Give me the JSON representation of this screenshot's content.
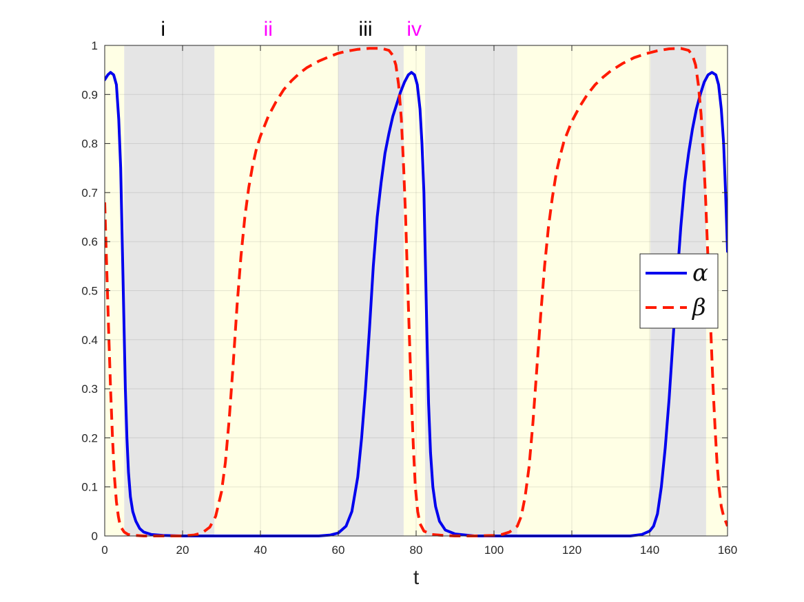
{
  "chart_data": {
    "type": "line",
    "title": "",
    "xlabel": "t",
    "ylabel": "",
    "xlim": [
      0,
      160
    ],
    "ylim": [
      0,
      1
    ],
    "x_ticks": [
      0,
      20,
      40,
      60,
      80,
      100,
      120,
      140,
      160
    ],
    "y_ticks": [
      0,
      0.1,
      0.2,
      0.3,
      0.4,
      0.5,
      0.6,
      0.7,
      0.8,
      0.9,
      1
    ],
    "x_tick_labels": [
      "0",
      "20",
      "40",
      "60",
      "80",
      "100",
      "120",
      "140",
      "160"
    ],
    "y_tick_labels": [
      "0",
      "0.1",
      "0.2",
      "0.3",
      "0.4",
      "0.5",
      "0.6",
      "0.7",
      "0.8",
      "0.9",
      "1"
    ],
    "grid": true,
    "legend_position": "right",
    "phase_labels": [
      {
        "text": "i",
        "x": 15,
        "color": "#000000"
      },
      {
        "text": "ii",
        "x": 42,
        "color": "#ff00ff"
      },
      {
        "text": "iii",
        "x": 67,
        "color": "#000000"
      },
      {
        "text": "iv",
        "x": 79.5,
        "color": "#ff00ff"
      }
    ],
    "shaded_regions": [
      {
        "x0": 0,
        "x1": 5,
        "color": "#ffffe5"
      },
      {
        "x0": 5,
        "x1": 28.2,
        "color": "#e5e5e5"
      },
      {
        "x0": 28.2,
        "x1": 60,
        "color": "#ffffe5"
      },
      {
        "x0": 60,
        "x1": 76.8,
        "color": "#e5e5e5"
      },
      {
        "x0": 76.8,
        "x1": 82.3,
        "color": "#ffffe5"
      },
      {
        "x0": 82.3,
        "x1": 106,
        "color": "#e5e5e5"
      },
      {
        "x0": 106,
        "x1": 140.2,
        "color": "#ffffe5"
      },
      {
        "x0": 140.2,
        "x1": 154.5,
        "color": "#e5e5e5"
      },
      {
        "x0": 154.5,
        "x1": 160,
        "color": "#ffffe5"
      }
    ],
    "series": [
      {
        "name": "α",
        "color": "#0000ee",
        "style": "solid",
        "points": [
          [
            0,
            0.93
          ],
          [
            0.8,
            0.94
          ],
          [
            1.5,
            0.945
          ],
          [
            2.3,
            0.94
          ],
          [
            3,
            0.92
          ],
          [
            3.6,
            0.85
          ],
          [
            4.1,
            0.75
          ],
          [
            4.5,
            0.6
          ],
          [
            4.9,
            0.45
          ],
          [
            5.3,
            0.3
          ],
          [
            5.7,
            0.2
          ],
          [
            6.1,
            0.13
          ],
          [
            6.6,
            0.08
          ],
          [
            7.2,
            0.05
          ],
          [
            8,
            0.03
          ],
          [
            9,
            0.015
          ],
          [
            10,
            0.008
          ],
          [
            12,
            0.003
          ],
          [
            15,
            0.001
          ],
          [
            20,
            0.0
          ],
          [
            40,
            0.0
          ],
          [
            55,
            0.0
          ],
          [
            58,
            0.002
          ],
          [
            60,
            0.006
          ],
          [
            62,
            0.02
          ],
          [
            63.5,
            0.05
          ],
          [
            65,
            0.12
          ],
          [
            66,
            0.2
          ],
          [
            67,
            0.3
          ],
          [
            68,
            0.42
          ],
          [
            69,
            0.55
          ],
          [
            70,
            0.65
          ],
          [
            71,
            0.72
          ],
          [
            72,
            0.78
          ],
          [
            73,
            0.82
          ],
          [
            74,
            0.855
          ],
          [
            75,
            0.88
          ],
          [
            76,
            0.905
          ],
          [
            77,
            0.925
          ],
          [
            78,
            0.94
          ],
          [
            78.8,
            0.945
          ],
          [
            79.6,
            0.94
          ],
          [
            80.3,
            0.92
          ],
          [
            81,
            0.87
          ],
          [
            81.5,
            0.8
          ],
          [
            82,
            0.7
          ],
          [
            82.4,
            0.55
          ],
          [
            82.8,
            0.4
          ],
          [
            83.2,
            0.27
          ],
          [
            83.7,
            0.17
          ],
          [
            84.3,
            0.1
          ],
          [
            85,
            0.06
          ],
          [
            86,
            0.03
          ],
          [
            87.5,
            0.012
          ],
          [
            90,
            0.004
          ],
          [
            95,
            0.0
          ],
          [
            120,
            0.0
          ],
          [
            135,
            0.0
          ],
          [
            138,
            0.003
          ],
          [
            140,
            0.01
          ],
          [
            141,
            0.02
          ],
          [
            142,
            0.045
          ],
          [
            143,
            0.1
          ],
          [
            144,
            0.18
          ],
          [
            145,
            0.28
          ],
          [
            146,
            0.4
          ],
          [
            147,
            0.52
          ],
          [
            148,
            0.63
          ],
          [
            149,
            0.72
          ],
          [
            150,
            0.78
          ],
          [
            151,
            0.83
          ],
          [
            152,
            0.87
          ],
          [
            153,
            0.9
          ],
          [
            154,
            0.925
          ],
          [
            155,
            0.94
          ],
          [
            156,
            0.945
          ],
          [
            157,
            0.94
          ],
          [
            157.7,
            0.92
          ],
          [
            158.4,
            0.87
          ],
          [
            159,
            0.8
          ],
          [
            159.5,
            0.7
          ],
          [
            160,
            0.58
          ]
        ]
      },
      {
        "name": "β",
        "color": "#ff1a00",
        "style": "dashed",
        "points": [
          [
            0,
            0.68
          ],
          [
            0.5,
            0.55
          ],
          [
            1,
            0.42
          ],
          [
            1.5,
            0.3
          ],
          [
            2,
            0.2
          ],
          [
            2.5,
            0.12
          ],
          [
            3,
            0.07
          ],
          [
            3.5,
            0.04
          ],
          [
            4,
            0.02
          ],
          [
            5,
            0.008
          ],
          [
            6,
            0.003
          ],
          [
            8,
            0.001
          ],
          [
            10,
            0.0
          ],
          [
            15,
            0.0
          ],
          [
            20,
            0.0
          ],
          [
            23,
            0.002
          ],
          [
            25,
            0.006
          ],
          [
            27,
            0.018
          ],
          [
            28.5,
            0.04
          ],
          [
            30,
            0.09
          ],
          [
            31,
            0.15
          ],
          [
            32,
            0.24
          ],
          [
            33,
            0.35
          ],
          [
            34,
            0.47
          ],
          [
            35,
            0.57
          ],
          [
            36,
            0.65
          ],
          [
            37,
            0.71
          ],
          [
            38,
            0.755
          ],
          [
            39,
            0.79
          ],
          [
            40,
            0.815
          ],
          [
            42,
            0.855
          ],
          [
            44,
            0.885
          ],
          [
            46,
            0.91
          ],
          [
            48,
            0.928
          ],
          [
            50,
            0.943
          ],
          [
            52,
            0.955
          ],
          [
            55,
            0.968
          ],
          [
            58,
            0.978
          ],
          [
            60,
            0.984
          ],
          [
            62,
            0.988
          ],
          [
            65,
            0.992
          ],
          [
            68,
            0.994
          ],
          [
            71,
            0.994
          ],
          [
            73,
            0.99
          ],
          [
            74,
            0.98
          ],
          [
            74.8,
            0.96
          ],
          [
            75.5,
            0.92
          ],
          [
            76.2,
            0.85
          ],
          [
            76.8,
            0.75
          ],
          [
            77.3,
            0.65
          ],
          [
            77.8,
            0.52
          ],
          [
            78.3,
            0.4
          ],
          [
            78.8,
            0.28
          ],
          [
            79.3,
            0.18
          ],
          [
            79.8,
            0.1
          ],
          [
            80.4,
            0.05
          ],
          [
            81,
            0.025
          ],
          [
            82,
            0.01
          ],
          [
            84,
            0.003
          ],
          [
            87,
            0.001
          ],
          [
            90,
            0.0
          ],
          [
            95,
            0.0
          ],
          [
            100,
            0.001
          ],
          [
            102,
            0.003
          ],
          [
            104,
            0.008
          ],
          [
            106,
            0.02
          ],
          [
            107,
            0.04
          ],
          [
            108,
            0.08
          ],
          [
            109,
            0.14
          ],
          [
            110,
            0.23
          ],
          [
            111,
            0.34
          ],
          [
            112,
            0.45
          ],
          [
            113,
            0.55
          ],
          [
            114,
            0.63
          ],
          [
            115,
            0.69
          ],
          [
            116,
            0.74
          ],
          [
            117,
            0.775
          ],
          [
            118,
            0.805
          ],
          [
            120,
            0.845
          ],
          [
            122,
            0.875
          ],
          [
            124,
            0.9
          ],
          [
            126,
            0.92
          ],
          [
            128,
            0.935
          ],
          [
            130,
            0.948
          ],
          [
            133,
            0.963
          ],
          [
            136,
            0.975
          ],
          [
            139,
            0.983
          ],
          [
            142,
            0.989
          ],
          [
            145,
            0.993
          ],
          [
            148,
            0.994
          ],
          [
            150,
            0.99
          ],
          [
            151,
            0.98
          ],
          [
            151.8,
            0.96
          ],
          [
            152.5,
            0.92
          ],
          [
            153.2,
            0.86
          ],
          [
            153.8,
            0.78
          ],
          [
            154.3,
            0.7
          ],
          [
            154.8,
            0.6
          ],
          [
            155.3,
            0.5
          ],
          [
            155.8,
            0.4
          ],
          [
            156.3,
            0.3
          ],
          [
            156.8,
            0.22
          ],
          [
            157.3,
            0.15
          ],
          [
            157.8,
            0.1
          ],
          [
            158.4,
            0.06
          ],
          [
            159,
            0.04
          ],
          [
            160,
            0.02
          ]
        ]
      }
    ]
  }
}
